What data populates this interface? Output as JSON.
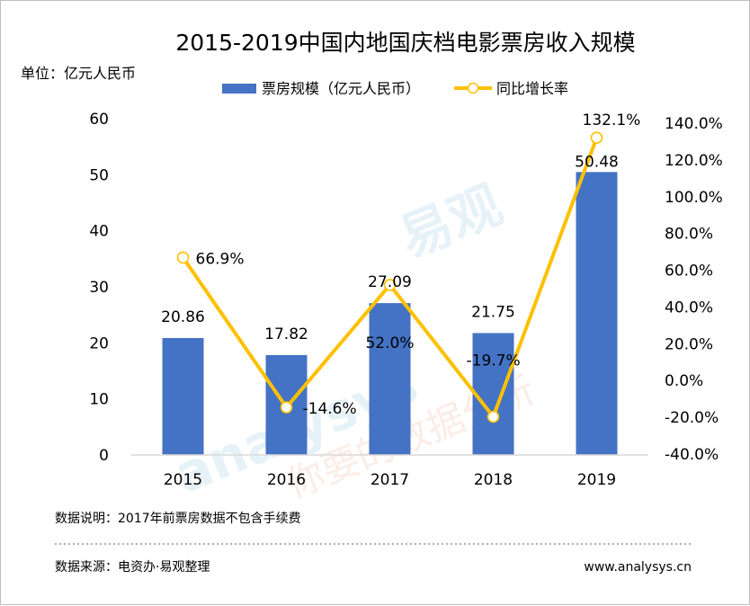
{
  "chart_data": {
    "type": "bar+line",
    "title": "2015-2019中国内地国庆档电影票房收入规模",
    "unit": "单位：亿元人民币",
    "categories": [
      "2015",
      "2016",
      "2017",
      "2018",
      "2019"
    ],
    "series": [
      {
        "name": "票房规模（亿元人民币）",
        "kind": "bar",
        "axis": "left",
        "values": [
          20.86,
          17.82,
          27.09,
          21.75,
          50.48
        ],
        "labels": [
          "20.86",
          "17.82",
          "27.09",
          "21.75",
          "50.48"
        ]
      },
      {
        "name": "同比增长率",
        "kind": "line",
        "axis": "right",
        "values": [
          66.9,
          -14.6,
          52.0,
          -19.7,
          132.1
        ],
        "labels": [
          "66.9%",
          "-14.6%",
          "52.0%",
          "-19.7%",
          "132.1%"
        ]
      }
    ],
    "y_left": {
      "min": 0,
      "max": 60,
      "ticks": [
        "0",
        "10",
        "20",
        "30",
        "40",
        "50",
        "60"
      ]
    },
    "y_right": {
      "min": -40,
      "max": 140,
      "ticks": [
        "-40.0%",
        "-20.0%",
        "0.0%",
        "20.0%",
        "40.0%",
        "60.0%",
        "80.0%",
        "100.0%",
        "120.0%",
        "140.0%"
      ]
    },
    "legend_position": "top",
    "colors": {
      "bar": "#4472C4",
      "line": "#FFC000",
      "marker_fill": "#ffffff"
    }
  },
  "footer": {
    "note": "数据说明：2017年前票房数据不包含手续费",
    "source": "数据来源：电资办·易观整理",
    "url": "www.analysys.cn"
  },
  "watermark": {
    "brand_latin": "analysys",
    "brand_cn": "易观",
    "slogan": "你要的数据分析"
  }
}
